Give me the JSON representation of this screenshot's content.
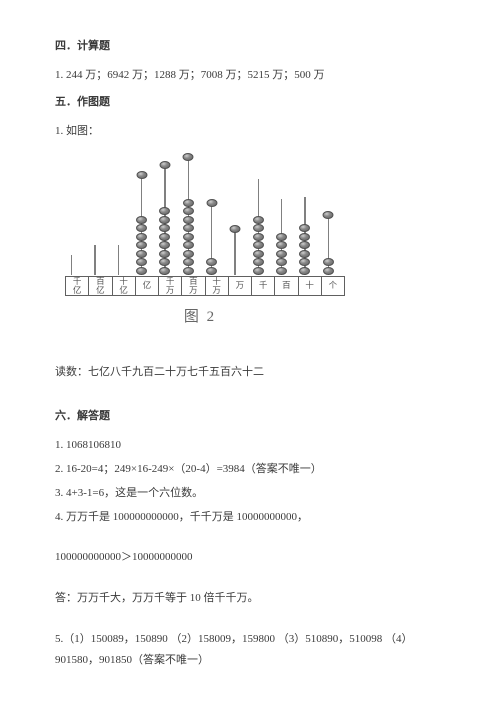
{
  "section4": {
    "heading": "四．计算题",
    "line1": "1. 244 万；6942 万；1288 万；7008 万；5215 万；500 万"
  },
  "section5": {
    "heading": "五．作图题",
    "line1": "1. 如图：",
    "reading_label": "读数：",
    "reading_value": "七亿八千九百二十万七千五百六十二",
    "figure_label": "图 2",
    "abacus": {
      "labels": [
        "千亿",
        "百亿",
        "十亿",
        "亿",
        "千万",
        "百万",
        "十万",
        "万",
        "千",
        "百",
        "十",
        "个"
      ],
      "counts": [
        0,
        0,
        0,
        7,
        8,
        9,
        2,
        0,
        7,
        5,
        6,
        2
      ],
      "stem_heights": [
        20,
        30,
        30,
        100,
        110,
        118,
        72,
        46,
        96,
        76,
        78,
        60
      ],
      "top_bead_mask": [
        0,
        0,
        0,
        1,
        1,
        1,
        1,
        1,
        0,
        0,
        0,
        1
      ]
    }
  },
  "section6": {
    "heading": "六．解答题",
    "l1": "1. 1068106810",
    "l2": "2. 16-20=4；249×16-249×（20-4）=3984（答案不唯一）",
    "l3": "3. 4+3-1=6，这是一个六位数。",
    "l4": "4. 万万千是 100000000000，千千万是 10000000000，",
    "l5": "100000000000＞10000000000",
    "l6": "答：万万千大，万万千等于 10 倍千千万。",
    "l7": "5.（1）150089，150890 （2）158009，159800 （3）510890，510098 （4）901580，901850（答案不唯一）"
  },
  "style": {
    "text_color": "#3a3a3a",
    "bead_dark": "#606060",
    "bead_light": "#cfcfcf",
    "base_border": "#606060"
  }
}
